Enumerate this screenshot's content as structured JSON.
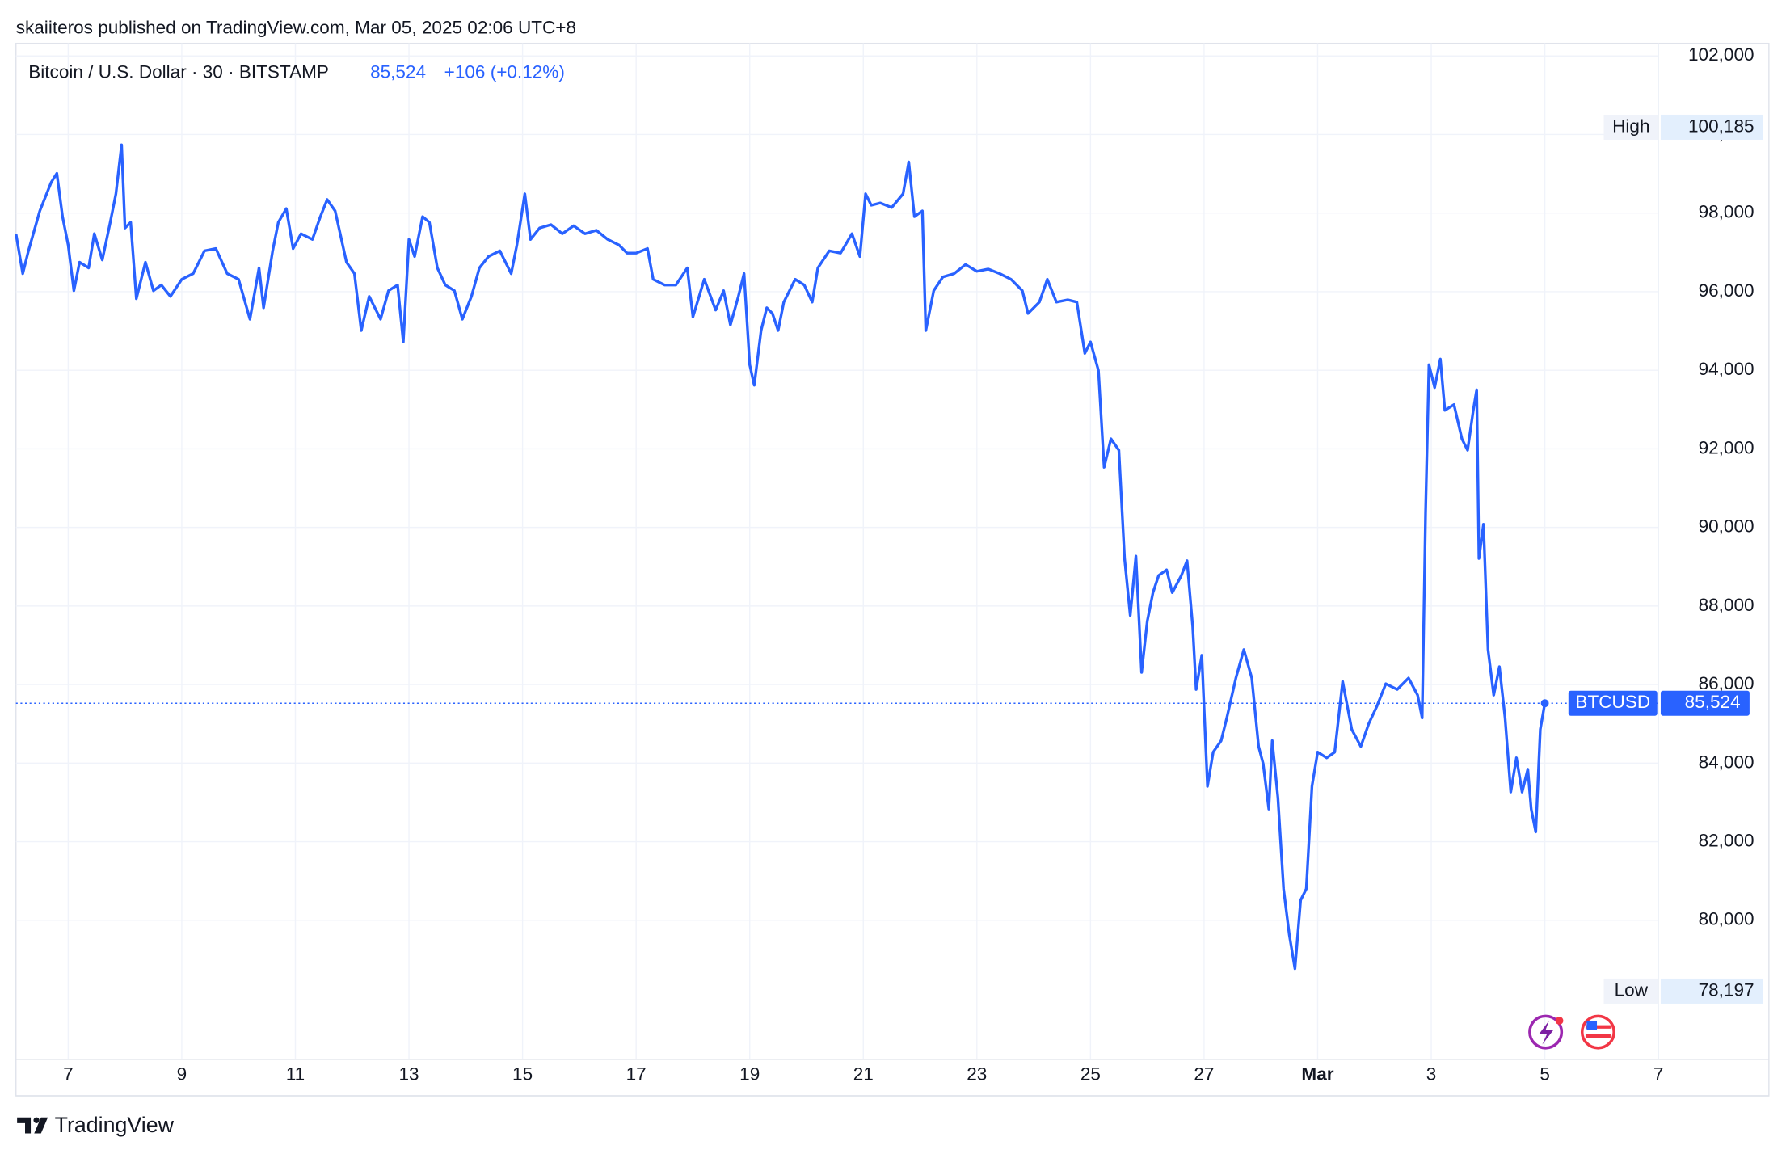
{
  "header": {
    "published": "skaiiteros published on TradingView.com, Mar 05, 2025 02:06 UTC+8"
  },
  "footer": {
    "brand": "TradingView"
  },
  "chart_data": {
    "type": "line",
    "title": "Bitcoin / U.S. Dollar · 30 · BITSTAMP",
    "last_price": {
      "value": 85524,
      "label": "85,524"
    },
    "change": "+106 (+0.12%)",
    "high": {
      "value": 100185,
      "label": "100,185",
      "name": "High"
    },
    "low": {
      "value": 78197,
      "label": "78,197",
      "name": "Low"
    },
    "grid": true,
    "xlim": [
      6.08,
      35
    ],
    "ylim": [
      76460,
      102320
    ],
    "xticks": [
      7,
      9,
      11,
      13,
      15,
      17,
      19,
      21,
      23,
      25,
      27,
      {
        "value": 29,
        "label": "Mar"
      },
      {
        "value": 31,
        "label": "3"
      },
      {
        "value": 33,
        "label": "5"
      },
      {
        "value": 35,
        "label": "7"
      }
    ],
    "yticks": [
      {
        "value": 80000,
        "label": "80,000"
      },
      {
        "value": 82000,
        "label": "82,000"
      },
      {
        "value": 84000,
        "label": "84,000"
      },
      {
        "value": 86000,
        "label": "86,000"
      },
      {
        "value": 88000,
        "label": "88,000"
      },
      {
        "value": 90000,
        "label": "90,000"
      },
      {
        "value": 92000,
        "label": "92,000"
      },
      {
        "value": 94000,
        "label": "94,000"
      },
      {
        "value": 96000,
        "label": "96,000"
      },
      {
        "value": 98000,
        "label": "98,000"
      },
      {
        "value": 100000,
        "label": "100,000"
      },
      {
        "value": 102000,
        "label": "102,000"
      }
    ],
    "x": [
      6.08,
      6.2,
      6.3,
      6.5,
      6.7,
      6.8,
      6.9,
      7.0,
      7.1,
      7.2,
      7.36,
      7.46,
      7.6,
      7.74,
      7.84,
      7.94,
      8.0,
      8.1,
      8.2,
      8.36,
      8.5,
      8.64,
      8.8,
      9.0,
      9.2,
      9.4,
      9.6,
      9.8,
      10.0,
      10.2,
      10.36,
      10.44,
      10.6,
      10.7,
      10.84,
      10.96,
      11.1,
      11.3,
      11.44,
      11.56,
      11.7,
      11.9,
      12.04,
      12.16,
      12.3,
      12.5,
      12.64,
      12.8,
      12.9,
      13.0,
      13.1,
      13.24,
      13.36,
      13.5,
      13.64,
      13.8,
      13.94,
      14.1,
      14.24,
      14.4,
      14.6,
      14.8,
      14.9,
      15.04,
      15.14,
      15.3,
      15.5,
      15.7,
      15.9,
      16.1,
      16.3,
      16.5,
      16.7,
      16.84,
      17.0,
      17.2,
      17.3,
      17.5,
      17.7,
      17.9,
      18.0,
      18.2,
      18.4,
      18.54,
      18.66,
      18.8,
      18.9,
      19.0,
      19.08,
      19.2,
      19.3,
      19.4,
      19.5,
      19.6,
      19.8,
      19.96,
      20.1,
      20.2,
      20.4,
      20.6,
      20.8,
      20.94,
      21.04,
      21.14,
      21.3,
      21.5,
      21.7,
      21.8,
      21.9,
      22.04,
      22.1,
      22.24,
      22.4,
      22.6,
      22.8,
      23.0,
      23.2,
      23.4,
      23.6,
      23.8,
      23.9,
      24.1,
      24.24,
      24.4,
      24.6,
      24.76,
      24.9,
      25.0,
      25.14,
      25.24,
      25.36,
      25.5,
      25.6,
      25.7,
      25.8,
      25.9,
      26.0,
      26.1,
      26.2,
      26.34,
      26.44,
      26.6,
      26.7,
      26.8,
      26.86,
      26.96,
      27.06,
      27.16,
      27.3,
      27.4,
      27.56,
      27.7,
      27.84,
      27.96,
      28.04,
      28.14,
      28.2,
      28.3,
      28.4,
      28.5,
      28.6,
      28.7,
      28.8,
      28.9,
      29.0,
      29.16,
      29.3,
      29.44,
      29.6,
      29.76,
      29.9,
      30.04,
      30.2,
      30.4,
      30.6,
      30.76,
      30.84,
      30.9,
      30.96,
      31.06,
      31.16,
      31.24,
      31.4,
      31.54,
      31.64,
      31.74,
      31.8,
      31.84,
      31.92,
      32.0,
      32.1,
      32.2,
      32.3,
      32.4,
      32.5,
      32.6,
      32.7,
      32.76,
      32.84,
      32.92,
      33.0
    ],
    "series": [
      {
        "name": "BTCUSD",
        "color": "#2962ff",
        "values": [
          97475,
          96460,
          97040,
          98055,
          98780,
          99012,
          97910,
          97185,
          96025,
          96750,
          96605,
          97475,
          96808,
          97765,
          98490,
          99737,
          97620,
          97765,
          95822,
          96750,
          96025,
          96170,
          95880,
          96315,
          96460,
          97040,
          97098,
          96460,
          96315,
          95300,
          96605,
          95590,
          97040,
          97765,
          98113,
          97098,
          97475,
          97330,
          97910,
          98345,
          98055,
          96750,
          96460,
          95010,
          95880,
          95300,
          96025,
          96170,
          94720,
          97330,
          96895,
          97910,
          97765,
          96605,
          96170,
          96025,
          95300,
          95880,
          96605,
          96895,
          97040,
          96460,
          97185,
          98490,
          97330,
          97620,
          97707,
          97475,
          97678,
          97475,
          97562,
          97330,
          97185,
          96982,
          96982,
          97098,
          96315,
          96170,
          96170,
          96605,
          95358,
          96315,
          95532,
          96025,
          95155,
          95880,
          96460,
          94140,
          93618,
          95010,
          95590,
          95445,
          95010,
          95735,
          96315,
          96170,
          95735,
          96605,
          97040,
          96982,
          97475,
          96895,
          98490,
          98200,
          98258,
          98142,
          98490,
          99302,
          97910,
          98055,
          95010,
          96025,
          96373,
          96460,
          96692,
          96518,
          96576,
          96460,
          96315,
          96025,
          95445,
          95735,
          96315,
          95735,
          95793,
          95735,
          94430,
          94720,
          93995,
          91530,
          92255,
          91965,
          89210,
          87760,
          89268,
          86310,
          87615,
          88340,
          88775,
          88920,
          88340,
          88775,
          89152,
          87470,
          85875,
          86745,
          83410,
          84280,
          84570,
          85150,
          86165,
          86890,
          86165,
          84425,
          83990,
          82830,
          84570,
          83120,
          80800,
          79640,
          78770,
          80510,
          80800,
          83410,
          84280,
          84135,
          84280,
          86078,
          84860,
          84425,
          85005,
          85440,
          86020,
          85875,
          86165,
          85730,
          85150,
          90370,
          94140,
          93560,
          94285,
          92980,
          93125,
          92255,
          91965,
          92980,
          93502,
          89210,
          90080,
          86890,
          85730,
          86455,
          85150,
          83265,
          84135,
          83265,
          83845,
          82830,
          82250,
          84860,
          85524
        ]
      }
    ]
  }
}
